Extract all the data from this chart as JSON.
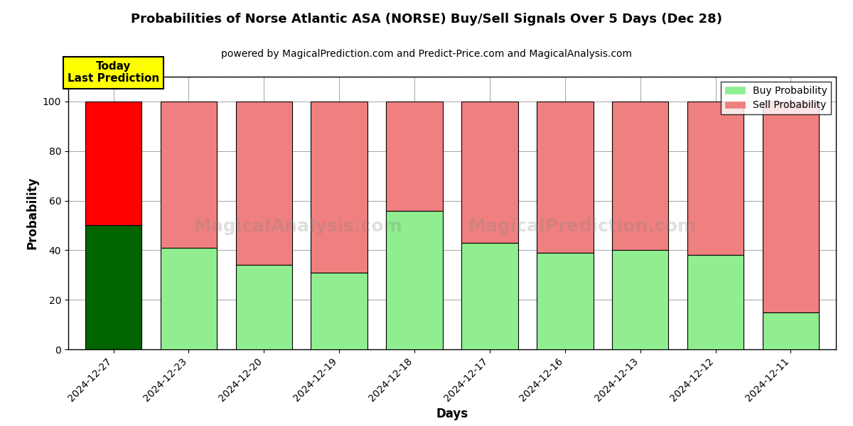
{
  "title": "Probabilities of Norse Atlantic ASA (NORSE) Buy/Sell Signals Over 5 Days (Dec 28)",
  "subtitle": "powered by MagicalPrediction.com and Predict-Price.com and MagicalAnalysis.com",
  "xlabel": "Days",
  "ylabel": "Probability",
  "categories": [
    "2024-12-27",
    "2024-12-23",
    "2024-12-20",
    "2024-12-19",
    "2024-12-18",
    "2024-12-17",
    "2024-12-16",
    "2024-12-13",
    "2024-12-12",
    "2024-12-11"
  ],
  "buy_values": [
    50,
    41,
    34,
    31,
    56,
    43,
    39,
    40,
    38,
    15
  ],
  "sell_values": [
    50,
    59,
    66,
    69,
    44,
    57,
    61,
    60,
    62,
    85
  ],
  "today_index": 0,
  "today_buy_color": "#006400",
  "today_sell_color": "#ff0000",
  "buy_color": "#90EE90",
  "sell_color": "#F08080",
  "today_label_bg": "#ffff00",
  "today_label_text": "Today\nLast Prediction",
  "watermark_text1": "MagicalAnalysis.com",
  "watermark_text2": "MagicalPrediction.com",
  "legend_buy": "Buy Probability",
  "legend_sell": "Sell Probability",
  "ylim": [
    0,
    110
  ],
  "yticks": [
    0,
    20,
    40,
    60,
    80,
    100
  ],
  "dashed_line_y": 110,
  "figsize": [
    12.0,
    6.0
  ],
  "dpi": 100
}
